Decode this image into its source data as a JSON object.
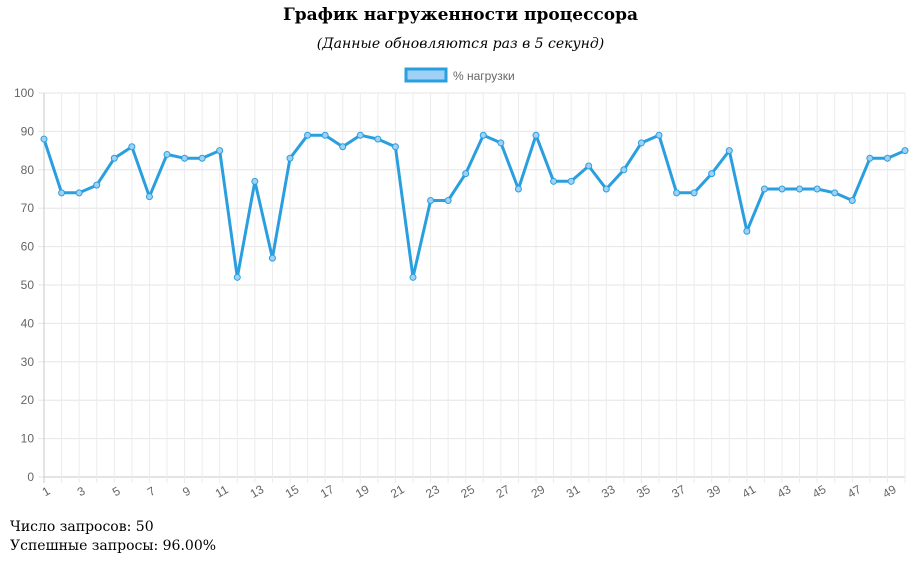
{
  "header": {
    "title": "График нагруженности процессора",
    "subtitle": "(Данные обновляются раз в 5 секунд)"
  },
  "stats": {
    "requests_label": "Число запросов: 50",
    "success_label": "Успешные запросы: 96.00%"
  },
  "chart_data": {
    "type": "line",
    "x": [
      1,
      2,
      3,
      4,
      5,
      6,
      7,
      8,
      9,
      10,
      11,
      12,
      13,
      14,
      15,
      16,
      17,
      18,
      19,
      20,
      21,
      22,
      23,
      24,
      25,
      26,
      27,
      28,
      29,
      30,
      31,
      32,
      33,
      34,
      35,
      36,
      37,
      38,
      39,
      40,
      41,
      42,
      43,
      44,
      45,
      46,
      47,
      48,
      49,
      50
    ],
    "x_tick_labels": [
      "1",
      "3",
      "5",
      "7",
      "9",
      "11",
      "13",
      "15",
      "17",
      "19",
      "21",
      "23",
      "25",
      "27",
      "29",
      "31",
      "33",
      "35",
      "37",
      "39",
      "41",
      "43",
      "45",
      "47",
      "49"
    ],
    "series": [
      {
        "name": "% нагрузки",
        "color": "#2a9fe0",
        "fill_color": "#9fd0f5",
        "values": [
          88,
          74,
          74,
          76,
          83,
          86,
          73,
          84,
          83,
          83,
          85,
          52,
          77,
          57,
          83,
          89,
          89,
          86,
          89,
          88,
          86,
          52,
          72,
          72,
          79,
          89,
          87,
          75,
          89,
          77,
          77,
          81,
          75,
          80,
          87,
          89,
          74,
          74,
          79,
          85,
          64,
          75,
          75,
          75,
          75,
          74,
          72,
          83,
          83,
          85
        ]
      }
    ],
    "y_ticks": [
      "0",
      "10",
      "20",
      "30",
      "40",
      "50",
      "60",
      "70",
      "80",
      "90",
      "100"
    ],
    "ylim": [
      0,
      100
    ],
    "grid": true,
    "legend": "top-center"
  }
}
